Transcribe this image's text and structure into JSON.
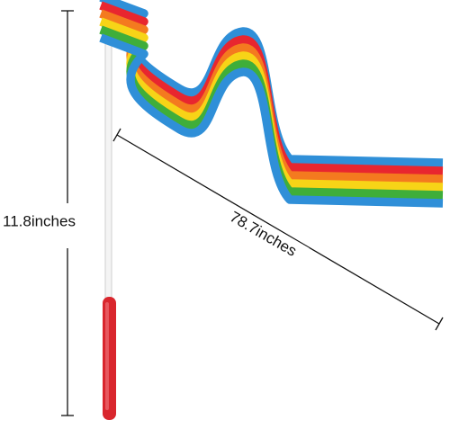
{
  "labels": {
    "height": "11.8inches",
    "length": "78.7inches"
  }
}
